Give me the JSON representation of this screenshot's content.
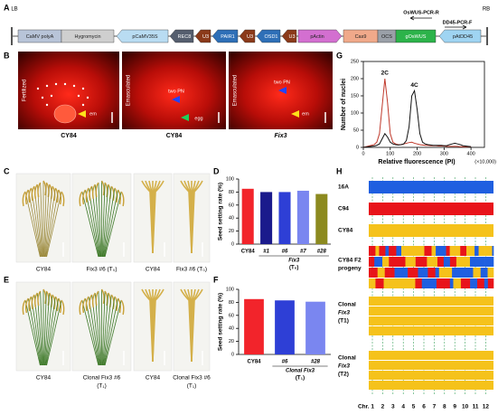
{
  "panel_labels": [
    "A",
    "B",
    "C",
    "D",
    "E",
    "F",
    "G",
    "H"
  ],
  "construct": {
    "left_border": "LB",
    "right_border": "RB",
    "elements": [
      "CaMV polyA",
      "Hygromycin",
      "pCaMV35S",
      "REC8",
      "U3",
      "PAIR1",
      "U3",
      "OSD1",
      "U3",
      "pActin",
      "Cas9",
      "OCS",
      "gOsWUS",
      "pAtDD45"
    ],
    "primers": [
      "OsWUS-PCR-R",
      "DD45-PCR-F"
    ]
  },
  "panel_b": {
    "side_labels": [
      "Fertilized",
      "Emasculated",
      "Emasculated"
    ],
    "annotations": [
      "em",
      "two PN",
      "egg",
      "two PN",
      "em"
    ],
    "captions": [
      "CY84",
      "CY84",
      "Fix3"
    ]
  },
  "panel_c": {
    "captions": [
      "CY84",
      "Fix3 #6 (T₀)",
      "CY84",
      "Fix3 #6 (T₀)"
    ]
  },
  "panel_e": {
    "captions": [
      [
        "CY84"
      ],
      [
        "Clonal Fix3 #6",
        "(T₁)"
      ],
      [
        "CY84"
      ],
      [
        "Clonal Fix3 #6",
        "(T₁)"
      ]
    ]
  },
  "panel_h": {
    "rows": [
      [
        "16A"
      ],
      [
        "C94"
      ],
      [
        "CY84"
      ],
      [
        "CY84 F2",
        "progeny"
      ],
      [
        "Clonal",
        "Fix3",
        "(T1)"
      ],
      [
        "Clonal",
        "Fix3",
        "(T2)"
      ]
    ],
    "chromosomes": [
      "Chr. 1",
      "2",
      "3",
      "4",
      "5",
      "6",
      "7",
      "8",
      "9",
      "10",
      "11",
      "12"
    ]
  },
  "chart_data": [
    {
      "type": "bar",
      "ylabel": "Seed setting rate (%)",
      "categories": [
        "CY84",
        "#1",
        "#6",
        "#7",
        "#28"
      ],
      "values": [
        85,
        80,
        80,
        82,
        77
      ],
      "colors": [
        "#f2242b",
        "#1a1a8c",
        "#2e3fd6",
        "#7a86f0",
        "#8c8a1f"
      ],
      "group_label": [
        "Fix3",
        "(T₀)"
      ],
      "ylim": [
        0,
        100
      ],
      "yticks": [
        0,
        20,
        40,
        60,
        80,
        100
      ]
    },
    {
      "type": "bar",
      "ylabel": "Seed setting rate (%)",
      "categories": [
        "CY84",
        "#6",
        "#28"
      ],
      "values": [
        85,
        83,
        81
      ],
      "colors": [
        "#f2242b",
        "#2e3fd6",
        "#7a86f0"
      ],
      "group_label": [
        "Clonal Fix3",
        "(T₁)"
      ],
      "ylim": [
        0,
        100
      ],
      "yticks": [
        0,
        20,
        40,
        60,
        80,
        100
      ]
    },
    {
      "type": "line",
      "xlabel": "Relative fluorescence (PI)",
      "ylabel": "Number of nuclei",
      "x_unit": "(×10,000)",
      "x": [
        0,
        10,
        20,
        30,
        40,
        50,
        60,
        70,
        80,
        90,
        100,
        110,
        120,
        130,
        140,
        150,
        160,
        170,
        180,
        190,
        200,
        210,
        220,
        230,
        240,
        250,
        260,
        270,
        280,
        290,
        300,
        310,
        320,
        330,
        340,
        350,
        360,
        370,
        380,
        390,
        400
      ],
      "series": [
        {
          "name": "2C",
          "color": "#c0392b",
          "values": [
            0,
            2,
            4,
            6,
            8,
            15,
            40,
            120,
            200,
            130,
            40,
            15,
            10,
            8,
            8,
            10,
            12,
            14,
            15,
            12,
            10,
            8,
            7,
            6,
            6,
            5,
            5,
            5,
            4,
            4,
            4,
            3,
            3,
            3,
            3,
            3,
            2,
            2,
            2,
            2,
            2
          ]
        },
        {
          "name": "4C",
          "color": "#111111",
          "values": [
            0,
            1,
            2,
            3,
            4,
            6,
            10,
            25,
            40,
            30,
            15,
            10,
            8,
            7,
            8,
            10,
            20,
            60,
            150,
            165,
            110,
            40,
            15,
            10,
            8,
            7,
            6,
            6,
            6,
            6,
            5,
            5,
            8,
            10,
            12,
            10,
            8,
            5,
            4,
            3,
            2
          ]
        }
      ],
      "xlim": [
        0,
        450
      ],
      "xticks": [
        0,
        100,
        200,
        300,
        400
      ],
      "ylim": [
        0,
        250
      ],
      "yticks": [
        0,
        50,
        100,
        150,
        200,
        250
      ]
    }
  ]
}
